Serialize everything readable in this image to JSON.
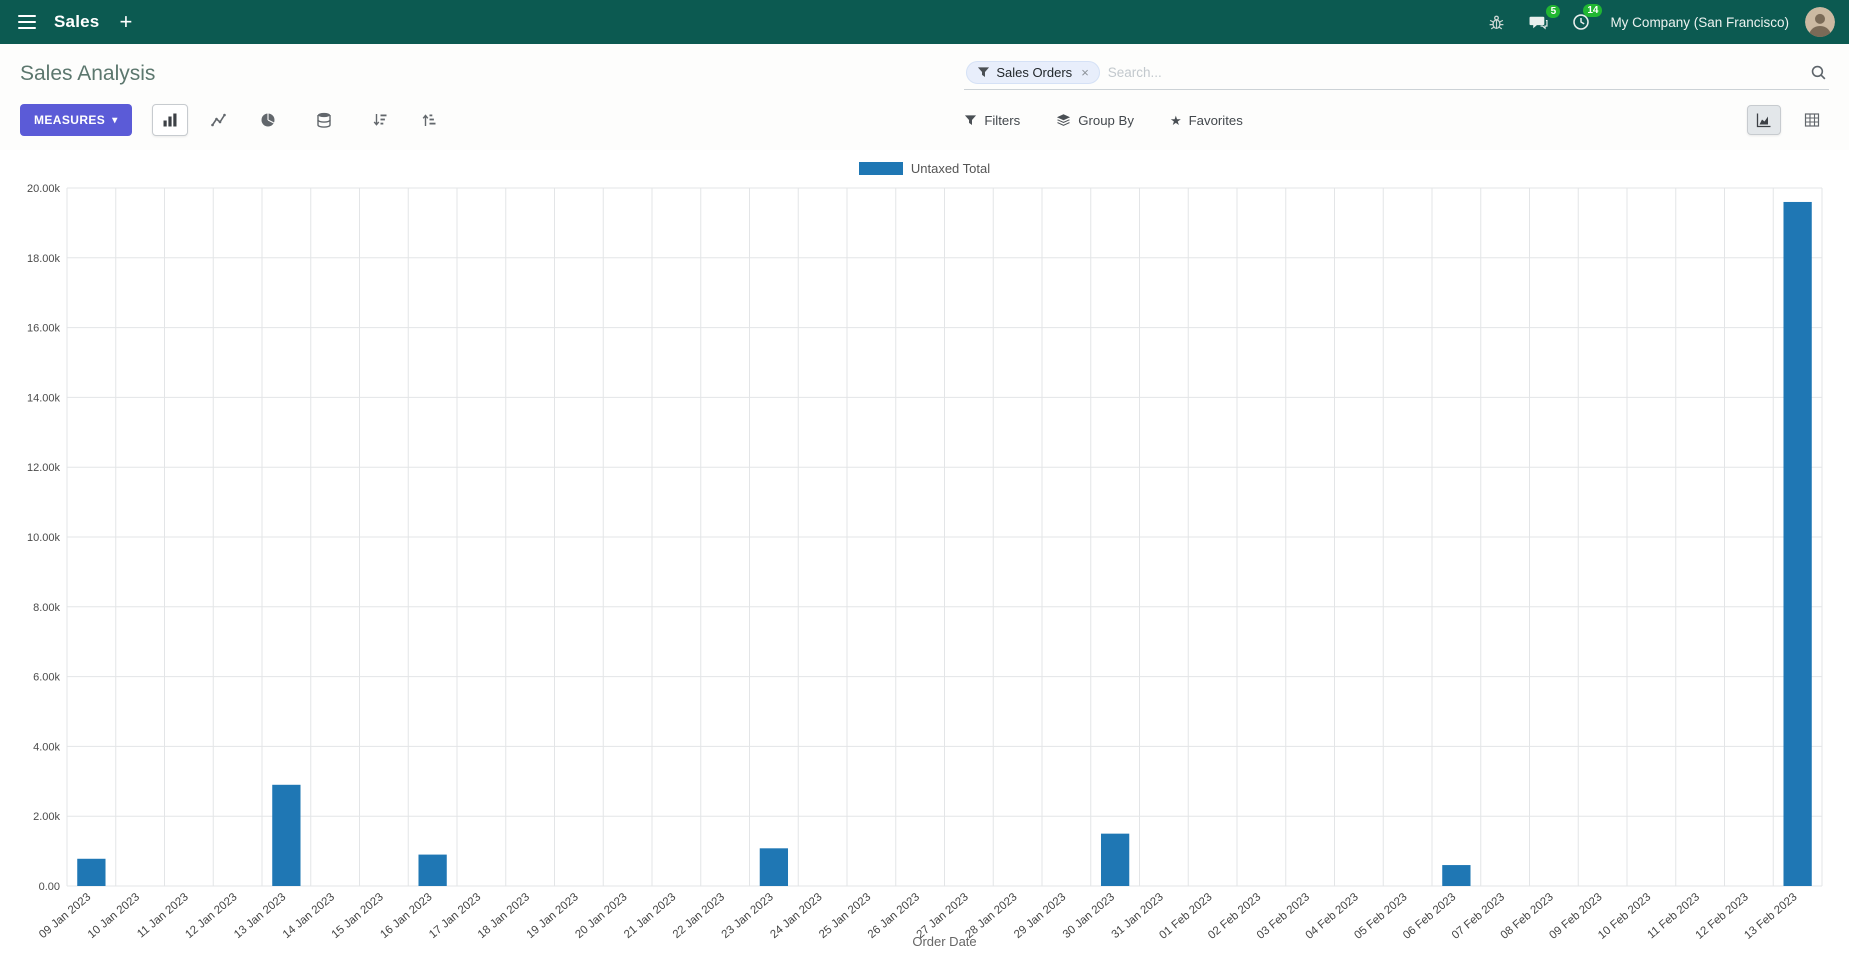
{
  "colors": {
    "navbar_bg": "#0c5a51",
    "primary": "#5b5bd7",
    "badge": "#21b632",
    "bar": "#1f77b4"
  },
  "icons": {
    "plus": "+",
    "caret_down": "▾",
    "close": "×",
    "star": "★"
  },
  "navbar": {
    "app_name": "Sales",
    "company": "My Company (San Francisco)",
    "message_badge": "5",
    "activity_badge": "14"
  },
  "control_panel": {
    "title": "Sales Analysis",
    "search": {
      "facet": "Sales Orders",
      "placeholder": "Search..."
    },
    "measures_label": "MEASURES",
    "filters_label": "Filters",
    "group_by_label": "Group By",
    "favorites_label": "Favorites"
  },
  "chart_data": {
    "type": "bar",
    "title": "",
    "xlabel": "Order Date",
    "ylabel": "",
    "ylim": [
      0,
      20000
    ],
    "y_ticks": [
      "0.00",
      "2.00k",
      "4.00k",
      "6.00k",
      "8.00k",
      "10.00k",
      "12.00k",
      "14.00k",
      "16.00k",
      "18.00k",
      "20.00k"
    ],
    "grid": true,
    "legend_position": "top",
    "categories": [
      "09 Jan 2023",
      "10 Jan 2023",
      "11 Jan 2023",
      "12 Jan 2023",
      "13 Jan 2023",
      "14 Jan 2023",
      "15 Jan 2023",
      "16 Jan 2023",
      "17 Jan 2023",
      "18 Jan 2023",
      "19 Jan 2023",
      "20 Jan 2023",
      "21 Jan 2023",
      "22 Jan 2023",
      "23 Jan 2023",
      "24 Jan 2023",
      "25 Jan 2023",
      "26 Jan 2023",
      "27 Jan 2023",
      "28 Jan 2023",
      "29 Jan 2023",
      "30 Jan 2023",
      "31 Jan 2023",
      "01 Feb 2023",
      "02 Feb 2023",
      "03 Feb 2023",
      "04 Feb 2023",
      "05 Feb 2023",
      "06 Feb 2023",
      "07 Feb 2023",
      "08 Feb 2023",
      "09 Feb 2023",
      "10 Feb 2023",
      "11 Feb 2023",
      "12 Feb 2023",
      "13 Feb 2023"
    ],
    "series": [
      {
        "name": "Untaxed Total",
        "color": "#1f77b4",
        "values": [
          780,
          0,
          0,
          0,
          2900,
          0,
          0,
          900,
          0,
          0,
          0,
          0,
          0,
          0,
          1080,
          0,
          0,
          0,
          0,
          0,
          0,
          1500,
          0,
          0,
          0,
          0,
          0,
          0,
          600,
          0,
          0,
          0,
          0,
          0,
          0,
          19600
        ]
      }
    ]
  }
}
